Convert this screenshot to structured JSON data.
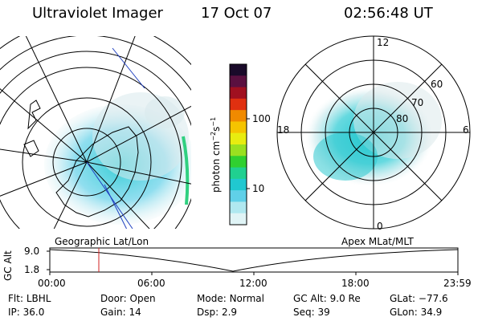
{
  "header": {
    "instrument": "Ultraviolet Imager",
    "date": "17 Oct 07",
    "time": "02:56:48 UT"
  },
  "colorbar": {
    "unit_main": "photon cm",
    "unit_exp1": "−2",
    "unit_s": "s",
    "unit_exp2": "−1",
    "ticks": [
      "100",
      "10"
    ],
    "colors": [
      "#1a0a2a",
      "#5a1040",
      "#a01020",
      "#e03010",
      "#f08a00",
      "#f5c400",
      "#e8ec10",
      "#9ae020",
      "#30d030",
      "#20d090",
      "#20c8d0",
      "#60d0e8",
      "#b0e8f0",
      "#e0f4f6"
    ]
  },
  "left_map": {
    "label": "Geographic Lat/Lon"
  },
  "right_map": {
    "label": "Apex MLat/MLT",
    "mlt_labels": {
      "top": "12",
      "bottom": "0",
      "left": "18",
      "right": "6"
    },
    "lat_labels": [
      "60",
      "70",
      "80"
    ]
  },
  "altitude_plot": {
    "axis_label": "GC Alt",
    "y_ticks": [
      "9.0",
      "1.8"
    ],
    "x_ticks": [
      "00:00",
      "06:00",
      "12:00",
      "18:00",
      "23:59"
    ],
    "marker_color": "#d02020"
  },
  "footer": {
    "row1": [
      {
        "key": "Flt:",
        "value": "LBHL"
      },
      {
        "key": "Door:",
        "value": "Open"
      },
      {
        "key": "Mode:",
        "value": "Normal"
      },
      {
        "key": "GC Alt:",
        "value": "9.0 Re"
      },
      {
        "key": "GLat:",
        "value": "−77.6"
      }
    ],
    "row2": [
      {
        "key": "IP:",
        "value": "36.0"
      },
      {
        "key": "Gain:",
        "value": "14"
      },
      {
        "key": "Dsp:",
        "value": "2.9"
      },
      {
        "key": "Seq:",
        "value": "39"
      },
      {
        "key": "GLon:",
        "value": "34.9"
      }
    ]
  }
}
